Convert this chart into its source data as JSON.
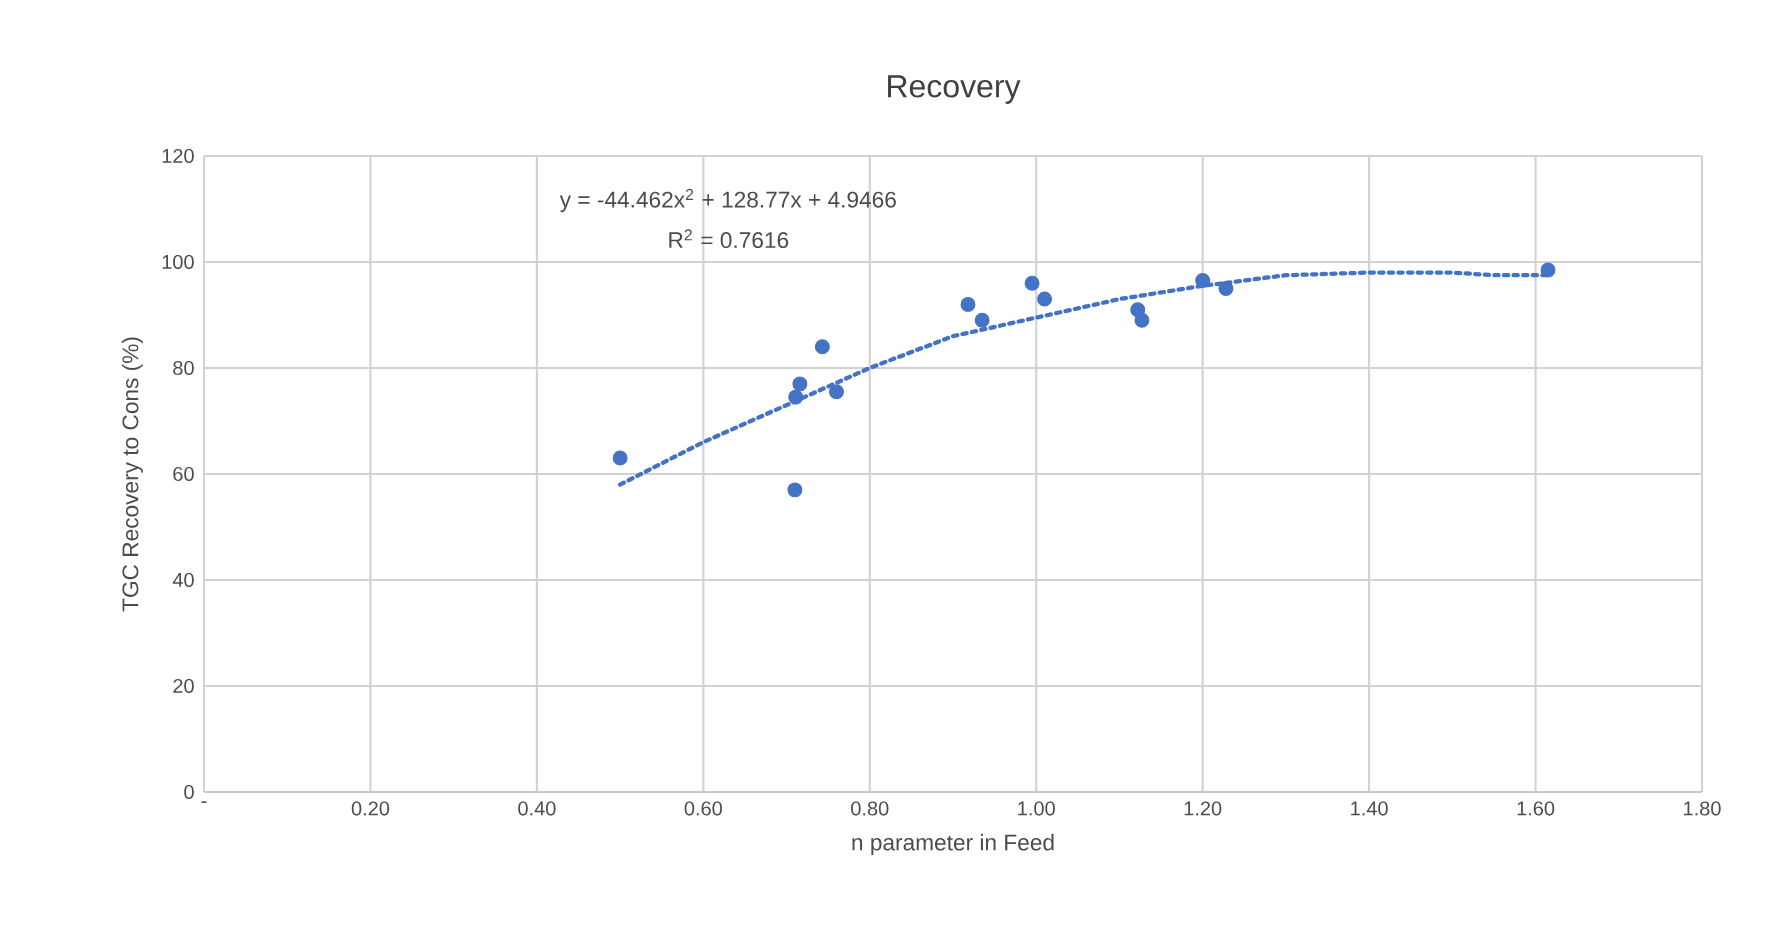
{
  "chart_data": {
    "type": "scatter",
    "title": "Recovery",
    "xlabel": "n parameter in Feed",
    "ylabel": "TGC Recovery to Cons (%)",
    "annotations": [
      "y = -44.462x$^{2}$ + 128.77x + 4.9466",
      "R$^{2}$ = 0.7616"
    ],
    "series": [
      {
        "color": "#4472c4",
        "marker": "circle",
        "x": [
          0.5,
          0.71,
          0.716,
          0.711,
          0.743,
          0.76,
          0.918,
          0.935,
          0.995,
          1.01,
          1.122,
          1.127,
          1.2,
          1.228,
          1.615
        ],
        "values": [
          63,
          57,
          77,
          74.5,
          84,
          75.5,
          92,
          89,
          96,
          93,
          91,
          89,
          96.5,
          95,
          98.5
        ]
      },
      {
        "type": "line",
        "color": "#4472c4",
        "marker": "none",
        "line_style": "dotted",
        "x": [
          0.5,
          0.6,
          0.7,
          0.8,
          0.9,
          1.0,
          1.1,
          1.2,
          1.3,
          1.4,
          1.5,
          1.55,
          1.615
        ],
        "values": [
          58,
          66,
          73,
          80,
          86,
          89.5,
          93,
          95.5,
          97.5,
          98,
          98,
          97.5,
          97.5
        ]
      }
    ],
    "xlim": [
      0,
      1.8
    ],
    "ylim": [
      0,
      120
    ],
    "xticks": [
      {
        "value": 0,
        "label": "-"
      },
      {
        "value": 0.2,
        "label": "0.20"
      },
      {
        "value": 0.4,
        "label": "0.40"
      },
      {
        "value": 0.6,
        "label": "0.60"
      },
      {
        "value": 0.8,
        "label": "0.80"
      },
      {
        "value": 1.0,
        "label": "1.00"
      },
      {
        "value": 1.2,
        "label": "1.20"
      },
      {
        "value": 1.4,
        "label": "1.40"
      },
      {
        "value": 1.6,
        "label": "1.60"
      },
      {
        "value": 1.8,
        "label": "1.80"
      }
    ],
    "yticks": [
      0,
      20,
      40,
      60,
      80,
      100,
      120
    ],
    "grid": true
  }
}
